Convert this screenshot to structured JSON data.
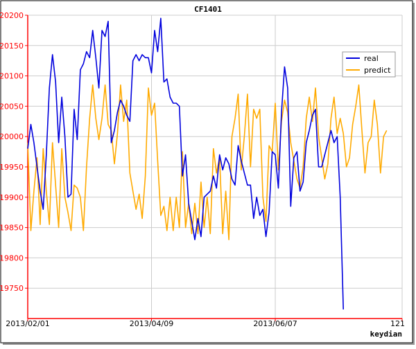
{
  "chart_data": {
    "type": "line",
    "title": "CF1401",
    "xlabel": "keydian",
    "ylabel": "",
    "ylim": [
      19700,
      20200
    ],
    "yticks": [
      19750,
      19800,
      19850,
      19900,
      19950,
      20000,
      20050,
      20100,
      20150,
      20200
    ],
    "ytick_color": "#ff0000",
    "x_range": [
      0,
      121
    ],
    "xticks": [
      {
        "x": 0,
        "label": "2013/02/01"
      },
      {
        "x": 40,
        "label": "2013/04/09"
      },
      {
        "x": 80,
        "label": "2013/06/07"
      },
      {
        "x": 121,
        "label": "121"
      }
    ],
    "grid": true,
    "legend_position": "top-right",
    "series": [
      {
        "name": "real",
        "color": "#0000dd",
        "values": [
          19980,
          20020,
          19990,
          19950,
          19910,
          19880,
          19970,
          20080,
          20135,
          20090,
          19990,
          20065,
          20000,
          19900,
          19905,
          20045,
          19995,
          20110,
          20120,
          20140,
          20130,
          20175,
          20130,
          20080,
          20175,
          20165,
          20190,
          19990,
          20010,
          20040,
          20060,
          20050,
          20035,
          20025,
          20125,
          20135,
          20125,
          20135,
          20130,
          20130,
          20105,
          20175,
          20140,
          20195,
          20090,
          20095,
          20065,
          20055,
          20055,
          20050,
          19935,
          19970,
          19890,
          19860,
          19830,
          19865,
          19835,
          19900,
          19905,
          19910,
          19935,
          19915,
          19970,
          19945,
          19965,
          19955,
          19930,
          19920,
          19985,
          19960,
          19940,
          19920,
          19920,
          19865,
          19900,
          19870,
          19880,
          19835,
          19875,
          19975,
          19970,
          19915,
          20040,
          20115,
          20080,
          19885,
          19965,
          19975,
          19910,
          19925,
          19990,
          20010,
          20035,
          20045,
          19950,
          19950,
          19970,
          19990,
          20010,
          19990,
          20000,
          19900,
          19715
        ]
      },
      {
        "name": "predict",
        "color": "#ffaa00",
        "values": [
          19990,
          19845,
          19910,
          19965,
          19855,
          19980,
          19910,
          19855,
          19990,
          19920,
          19850,
          19980,
          19900,
          19875,
          19845,
          19920,
          19915,
          19900,
          19845,
          19950,
          20030,
          20085,
          20030,
          19995,
          20030,
          20085,
          20020,
          20010,
          19955,
          20005,
          20085,
          20025,
          20060,
          19940,
          19910,
          19880,
          19905,
          19865,
          19935,
          20080,
          20035,
          20055,
          19960,
          19870,
          19885,
          19845,
          19900,
          19845,
          19900,
          19850,
          19975,
          19850,
          19890,
          19840,
          19890,
          19840,
          19925,
          19850,
          19900,
          19840,
          19980,
          19940,
          19965,
          19840,
          19910,
          19830,
          20000,
          20030,
          20070,
          19945,
          20000,
          20070,
          19950,
          20045,
          20030,
          20045,
          19900,
          19860,
          19985,
          19975,
          20055,
          19945,
          20025,
          20060,
          20040,
          19990,
          19960,
          19930,
          19915,
          19950,
          20030,
          20065,
          20025,
          20080,
          20000,
          19965,
          19930,
          19955,
          20030,
          20065,
          20005,
          20030,
          20005,
          19950,
          19965,
          20020,
          20050,
          20085,
          20010,
          19940,
          19990,
          20000,
          20060,
          20020,
          19940,
          20000,
          20010
        ]
      }
    ]
  }
}
